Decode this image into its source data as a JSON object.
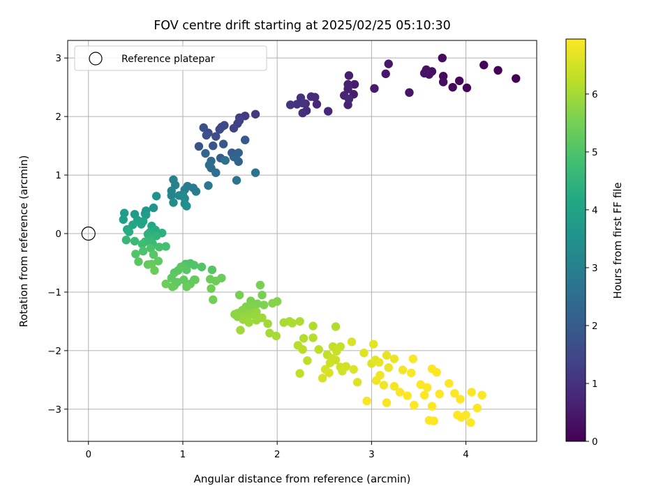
{
  "chart_data": {
    "type": "scatter",
    "title": "FOV centre drift starting at 2025/02/25 05:10:30",
    "xlabel": "Angular distance from reference (arcmin)",
    "ylabel": "Rotation from reference (arcmin)",
    "xlim": [
      -0.22,
      4.75
    ],
    "ylim": [
      -3.55,
      3.3
    ],
    "xticks": [
      0,
      1,
      2,
      3,
      4
    ],
    "yticks": [
      -3,
      -2,
      -1,
      0,
      1,
      2,
      3
    ],
    "grid": true,
    "legend": {
      "location": "upper left",
      "entries": [
        "Reference platepar"
      ]
    },
    "reference_point": {
      "x": 0,
      "y": 0,
      "label": "Reference platepar"
    },
    "colorbar": {
      "label": "Hours from first FF file",
      "colormap": "viridis",
      "range": [
        0,
        6.95
      ],
      "ticks": [
        0,
        1,
        2,
        3,
        4,
        5,
        6
      ]
    },
    "points": [
      [
        4.53,
        2.65,
        0.0
      ],
      [
        4.34,
        2.79,
        0.03
      ],
      [
        4.19,
        2.88,
        0.06
      ],
      [
        4.01,
        2.49,
        0.1
      ],
      [
        3.93,
        2.61,
        0.13
      ],
      [
        3.86,
        2.5,
        0.16
      ],
      [
        3.76,
        2.69,
        0.19
      ],
      [
        3.75,
        3.0,
        0.22
      ],
      [
        3.76,
        2.59,
        0.25
      ],
      [
        3.64,
        2.77,
        0.28
      ],
      [
        3.61,
        2.72,
        0.31
      ],
      [
        3.58,
        2.8,
        0.34
      ],
      [
        3.56,
        2.74,
        0.37
      ],
      [
        3.4,
        2.41,
        0.4
      ],
      [
        3.18,
        2.9,
        0.43
      ],
      [
        3.15,
        2.73,
        0.46
      ],
      [
        3.03,
        2.48,
        0.49
      ],
      [
        2.82,
        2.55,
        0.52
      ],
      [
        2.81,
        2.38,
        0.55
      ],
      [
        2.76,
        2.7,
        0.58
      ],
      [
        2.75,
        2.47,
        0.61
      ],
      [
        2.75,
        2.55,
        0.64
      ],
      [
        2.75,
        2.2,
        0.67
      ],
      [
        2.71,
        2.36,
        0.7
      ],
      [
        2.76,
        2.3,
        0.73
      ],
      [
        2.54,
        2.09,
        0.76
      ],
      [
        2.42,
        2.21,
        0.79
      ],
      [
        2.4,
        2.33,
        0.82
      ],
      [
        2.36,
        2.34,
        0.85
      ],
      [
        2.31,
        2.1,
        0.88
      ],
      [
        2.3,
        2.22,
        0.91
      ],
      [
        2.27,
        2.06,
        0.94
      ],
      [
        2.25,
        2.32,
        0.97
      ],
      [
        2.21,
        2.21,
        1.0
      ],
      [
        2.27,
        2.23,
        1.03
      ],
      [
        2.14,
        2.2,
        1.06
      ],
      [
        1.77,
        2.04,
        1.15
      ],
      [
        1.66,
        2.01,
        1.2
      ],
      [
        1.6,
        1.98,
        1.25
      ],
      [
        1.58,
        1.88,
        1.3
      ],
      [
        1.6,
        1.93,
        1.35
      ],
      [
        1.54,
        1.8,
        1.4
      ],
      [
        1.41,
        1.82,
        1.45
      ],
      [
        1.44,
        1.85,
        1.5
      ],
      [
        1.39,
        1.78,
        1.55
      ],
      [
        1.27,
        1.72,
        1.6
      ],
      [
        1.35,
        1.66,
        1.65
      ],
      [
        1.22,
        1.81,
        1.7
      ],
      [
        1.25,
        1.68,
        1.75
      ],
      [
        1.17,
        1.49,
        1.8
      ],
      [
        1.32,
        1.5,
        1.85
      ],
      [
        1.43,
        1.53,
        1.9
      ],
      [
        1.66,
        1.6,
        1.95
      ],
      [
        1.52,
        1.38,
        2.0
      ],
      [
        1.4,
        1.29,
        2.05
      ],
      [
        1.54,
        1.31,
        2.1
      ],
      [
        1.59,
        1.38,
        2.15
      ],
      [
        1.59,
        1.23,
        2.2
      ],
      [
        1.56,
        1.3,
        2.25
      ],
      [
        1.24,
        1.37,
        2.3
      ],
      [
        1.3,
        1.12,
        2.35
      ],
      [
        1.3,
        1.24,
        2.4
      ],
      [
        1.28,
        1.17,
        2.45
      ],
      [
        1.35,
        1.04,
        2.5
      ],
      [
        1.45,
        1.25,
        2.55
      ],
      [
        1.77,
        1.04,
        2.6
      ],
      [
        1.57,
        0.91,
        2.65
      ],
      [
        1.27,
        0.82,
        2.75
      ],
      [
        1.11,
        0.78,
        2.8
      ],
      [
        1.14,
        0.72,
        2.85
      ],
      [
        1.05,
        0.81,
        2.9
      ],
      [
        1.02,
        0.75,
        2.95
      ],
      [
        0.9,
        0.92,
        3.0
      ],
      [
        0.92,
        0.83,
        3.05
      ],
      [
        0.88,
        0.73,
        3.1
      ],
      [
        0.88,
        0.65,
        3.15
      ],
      [
        0.96,
        0.65,
        3.2
      ],
      [
        1.0,
        0.67,
        3.25
      ],
      [
        1.02,
        0.6,
        3.3
      ],
      [
        0.9,
        0.53,
        3.35
      ],
      [
        1.02,
        0.51,
        3.4
      ],
      [
        1.04,
        0.47,
        3.45
      ],
      [
        0.72,
        0.64,
        3.55
      ],
      [
        0.69,
        0.44,
        3.6
      ],
      [
        0.61,
        0.39,
        3.65
      ],
      [
        0.6,
        0.34,
        3.7
      ],
      [
        0.49,
        0.33,
        3.75
      ],
      [
        0.61,
        0.32,
        3.8
      ],
      [
        0.38,
        0.35,
        3.85
      ],
      [
        0.37,
        0.24,
        3.9
      ],
      [
        0.52,
        0.23,
        3.95
      ],
      [
        0.58,
        0.21,
        4.0
      ],
      [
        0.56,
        0.16,
        4.05
      ],
      [
        0.47,
        0.15,
        4.1
      ],
      [
        0.67,
        0.13,
        4.15
      ],
      [
        0.41,
        0.07,
        4.2
      ],
      [
        0.71,
        0.06,
        4.25
      ],
      [
        0.43,
        0.03,
        4.3
      ],
      [
        0.65,
        0.02,
        4.35
      ],
      [
        0.78,
        0.01,
        4.4
      ],
      [
        0.63,
        -0.01,
        4.45
      ],
      [
        0.72,
        -0.04,
        4.5
      ],
      [
        0.65,
        -0.1,
        4.55
      ],
      [
        0.4,
        -0.11,
        4.6
      ],
      [
        0.49,
        -0.13,
        4.65
      ],
      [
        0.6,
        -0.14,
        4.7
      ],
      [
        0.68,
        -0.17,
        4.75
      ],
      [
        0.57,
        -0.18,
        4.8
      ],
      [
        0.82,
        -0.22,
        4.85
      ],
      [
        0.75,
        -0.23,
        4.9
      ],
      [
        0.66,
        -0.25,
        4.95
      ],
      [
        0.58,
        -0.3,
        5.0
      ],
      [
        0.5,
        -0.35,
        5.05
      ],
      [
        0.69,
        -0.36,
        5.1
      ],
      [
        0.53,
        -0.48,
        5.15
      ],
      [
        0.74,
        -0.47,
        5.2
      ],
      [
        0.63,
        -0.53,
        5.25
      ],
      [
        0.67,
        -0.52,
        5.3
      ],
      [
        0.7,
        -0.63,
        5.35
      ],
      [
        0.82,
        -0.86,
        5.4
      ],
      [
        0.91,
        -0.89,
        5.45
      ],
      [
        1.03,
        -0.52,
        5.0
      ],
      [
        1.08,
        -0.51,
        5.02
      ],
      [
        1.12,
        -0.54,
        5.04
      ],
      [
        1.2,
        -0.57,
        5.06
      ],
      [
        1.31,
        -0.62,
        5.08
      ],
      [
        1.0,
        -0.56,
        5.1
      ],
      [
        1.04,
        -0.62,
        5.12
      ],
      [
        0.95,
        -0.63,
        5.14
      ],
      [
        0.98,
        -0.57,
        5.16
      ],
      [
        0.91,
        -0.67,
        5.18
      ],
      [
        0.88,
        -0.76,
        5.2
      ],
      [
        0.94,
        -0.83,
        5.22
      ],
      [
        1.01,
        -0.79,
        5.24
      ],
      [
        1.08,
        -0.86,
        5.26
      ],
      [
        1.12,
        -0.79,
        5.28
      ],
      [
        1.13,
        -0.79,
        5.3
      ],
      [
        0.89,
        -0.91,
        5.32
      ],
      [
        1.04,
        -0.91,
        5.34
      ],
      [
        1.41,
        -0.76,
        5.36
      ],
      [
        1.29,
        -0.78,
        5.38
      ],
      [
        1.35,
        -0.81,
        5.4
      ],
      [
        1.3,
        -0.94,
        5.42
      ],
      [
        1.32,
        -1.13,
        5.44
      ],
      [
        1.6,
        -1.05,
        5.5
      ],
      [
        1.82,
        -0.88,
        5.52
      ],
      [
        1.84,
        -1.05,
        5.54
      ],
      [
        1.72,
        -1.15,
        5.56
      ],
      [
        1.79,
        -1.2,
        5.58
      ],
      [
        1.86,
        -1.22,
        5.6
      ],
      [
        1.67,
        -1.25,
        5.62
      ],
      [
        1.73,
        -1.28,
        5.64
      ],
      [
        1.95,
        -1.19,
        5.66
      ],
      [
        2.0,
        -1.16,
        5.68
      ],
      [
        1.63,
        -1.31,
        5.7
      ],
      [
        1.58,
        -1.36,
        5.72
      ],
      [
        1.55,
        -1.38,
        5.74
      ],
      [
        1.58,
        -1.42,
        5.76
      ],
      [
        1.66,
        -1.39,
        5.78
      ],
      [
        1.71,
        -1.36,
        5.8
      ],
      [
        1.78,
        -1.34,
        5.82
      ],
      [
        1.76,
        -1.4,
        5.84
      ],
      [
        1.68,
        -1.44,
        5.86
      ],
      [
        1.64,
        -1.47,
        5.88
      ],
      [
        1.7,
        -1.52,
        5.9
      ],
      [
        1.78,
        -1.48,
        5.92
      ],
      [
        1.84,
        -1.44,
        5.94
      ],
      [
        1.61,
        -1.65,
        5.96
      ],
      [
        1.9,
        -1.54,
        5.98
      ],
      [
        1.92,
        -1.7,
        6.0
      ],
      [
        1.99,
        -1.75,
        6.02
      ],
      [
        2.07,
        -1.52,
        6.04
      ],
      [
        2.13,
        -1.5,
        6.06
      ],
      [
        2.16,
        -1.53,
        6.08
      ],
      [
        2.24,
        -1.5,
        6.1
      ],
      [
        2.38,
        -1.58,
        6.12
      ],
      [
        2.62,
        -1.59,
        6.14
      ],
      [
        2.28,
        -1.79,
        6.16
      ],
      [
        2.38,
        -1.78,
        6.18
      ],
      [
        2.22,
        -1.91,
        6.2
      ],
      [
        2.27,
        -1.98,
        6.22
      ],
      [
        2.44,
        -1.98,
        6.24
      ],
      [
        2.32,
        -2.17,
        6.26
      ],
      [
        2.24,
        -2.39,
        6.28
      ],
      [
        2.53,
        -2.07,
        6.3
      ],
      [
        2.59,
        -1.93,
        6.32
      ],
      [
        2.67,
        -1.93,
        6.34
      ],
      [
        2.63,
        -2.01,
        6.36
      ],
      [
        2.58,
        -2.13,
        6.38
      ],
      [
        2.56,
        -2.21,
        6.4
      ],
      [
        2.62,
        -2.16,
        6.42
      ],
      [
        2.67,
        -2.28,
        6.44
      ],
      [
        2.73,
        -2.27,
        6.46
      ],
      [
        2.69,
        -2.35,
        6.48
      ],
      [
        2.51,
        -2.32,
        6.5
      ],
      [
        2.48,
        -2.47,
        6.52
      ],
      [
        2.55,
        -2.38,
        6.54
      ],
      [
        2.79,
        -1.85,
        6.56
      ],
      [
        2.81,
        -2.32,
        6.58
      ],
      [
        2.85,
        -2.54,
        6.6
      ],
      [
        2.92,
        -2.04,
        6.62
      ],
      [
        3.0,
        -2.22,
        6.64
      ],
      [
        3.04,
        -2.16,
        6.66
      ],
      [
        3.02,
        -1.89,
        6.68
      ],
      [
        3.08,
        -2.2,
        6.7
      ],
      [
        3.16,
        -2.08,
        6.72
      ],
      [
        3.18,
        -2.29,
        6.74
      ],
      [
        3.24,
        -2.14,
        6.76
      ],
      [
        3.05,
        -2.51,
        6.78
      ],
      [
        3.09,
        -2.42,
        6.8
      ],
      [
        3.13,
        -2.59,
        6.82
      ],
      [
        3.24,
        -2.61,
        6.84
      ],
      [
        3.33,
        -2.33,
        6.86
      ],
      [
        2.95,
        -2.86,
        6.88
      ],
      [
        3.16,
        -2.89,
        6.9
      ],
      [
        3.3,
        -2.71,
        6.91
      ],
      [
        3.44,
        -2.14,
        6.92
      ],
      [
        3.42,
        -2.38,
        6.93
      ],
      [
        3.59,
        -2.63,
        6.94
      ],
      [
        3.56,
        -2.76,
        6.95
      ],
      [
        3.64,
        -2.31,
        6.95
      ],
      [
        3.69,
        -2.37,
        6.95
      ],
      [
        3.72,
        -2.74,
        6.95
      ],
      [
        3.82,
        -2.56,
        6.95
      ],
      [
        3.88,
        -2.73,
        6.95
      ],
      [
        3.94,
        -2.83,
        6.95
      ],
      [
        4.06,
        -2.71,
        6.95
      ],
      [
        4.17,
        -2.76,
        6.95
      ],
      [
        3.61,
        -3.19,
        6.95
      ],
      [
        3.66,
        -3.2,
        6.95
      ],
      [
        3.91,
        -3.1,
        6.95
      ],
      [
        3.95,
        -3.14,
        6.95
      ],
      [
        4.0,
        -3.1,
        6.95
      ],
      [
        4.05,
        -3.23,
        6.95
      ],
      [
        4.12,
        -2.98,
        6.95
      ],
      [
        3.64,
        -2.95,
        6.95
      ],
      [
        3.38,
        -2.77,
        6.95
      ],
      [
        3.45,
        -2.93,
        6.95
      ],
      [
        3.52,
        -2.58,
        6.95
      ]
    ]
  }
}
